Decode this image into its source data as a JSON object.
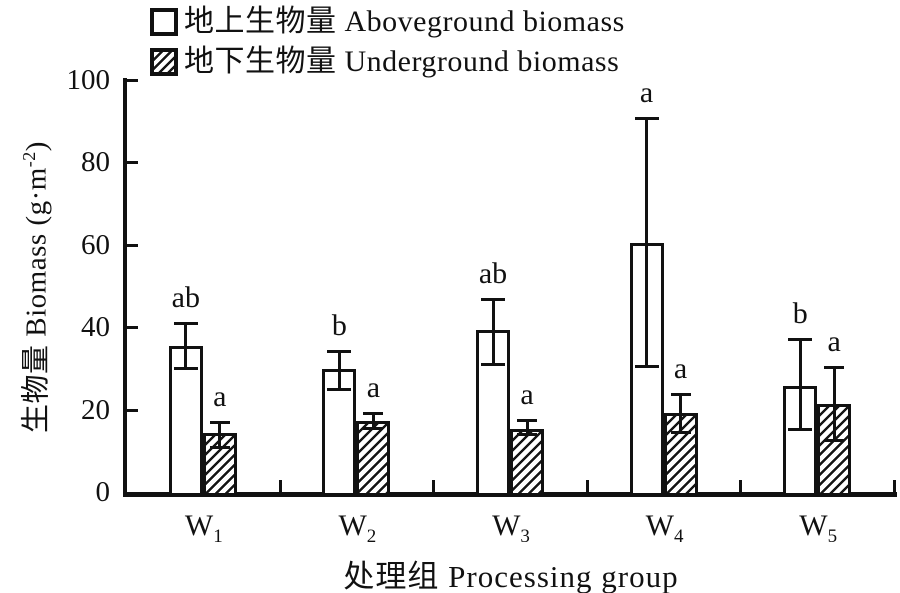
{
  "figure": {
    "kind": "grouped bar chart with error bars and significance letters"
  },
  "legend": {
    "items": [
      {
        "symbol": "open-square",
        "label": "地上生物量 Aboveground biomass"
      },
      {
        "symbol": "hatched-square",
        "label": "地下生物量 Underground biomass"
      }
    ]
  },
  "colors": {
    "ink": "#111111",
    "bar_fill": "#ffffff",
    "background": "#ffffff"
  },
  "chart_data": {
    "type": "bar",
    "title": "",
    "xlabel": "处理组 Processing group",
    "ylabel": "生物量 Biomass (g·m⁻²)",
    "ylabel_parts": {
      "main": "生物量 Biomass (g·m",
      "sup": "-2",
      "end": ")"
    },
    "ylim": [
      0,
      100
    ],
    "yticks": [
      0,
      20,
      40,
      60,
      80,
      100
    ],
    "grid": false,
    "legend_position": "top-left",
    "categories": [
      {
        "base": "W",
        "sub": "1"
      },
      {
        "base": "W",
        "sub": "2"
      },
      {
        "base": "W",
        "sub": "3"
      },
      {
        "base": "W",
        "sub": "4"
      },
      {
        "base": "W",
        "sub": "5"
      }
    ],
    "series": [
      {
        "name": "Aboveground biomass",
        "name_cn": "地上生物量",
        "style": "open",
        "values": [
          35.5,
          29.8,
          39.3,
          60.5,
          25.7
        ],
        "err_upper": [
          41.0,
          34.3,
          46.8,
          90.8,
          37.2
        ],
        "err_lower": [
          30.0,
          25.0,
          31.0,
          30.5,
          15.2
        ],
        "sig_letters": [
          "ab",
          "b",
          "ab",
          "a",
          "b"
        ]
      },
      {
        "name": "Underground biomass",
        "name_cn": "地下生物量",
        "style": "hatched",
        "values": [
          14.2,
          17.3,
          15.2,
          19.2,
          21.3
        ],
        "err_upper": [
          17.0,
          19.2,
          17.5,
          23.7,
          30.3
        ],
        "err_lower": [
          11.0,
          15.5,
          14.0,
          14.5,
          12.7
        ],
        "sig_letters": [
          "a",
          "a",
          "a",
          "a",
          "a"
        ]
      }
    ]
  }
}
